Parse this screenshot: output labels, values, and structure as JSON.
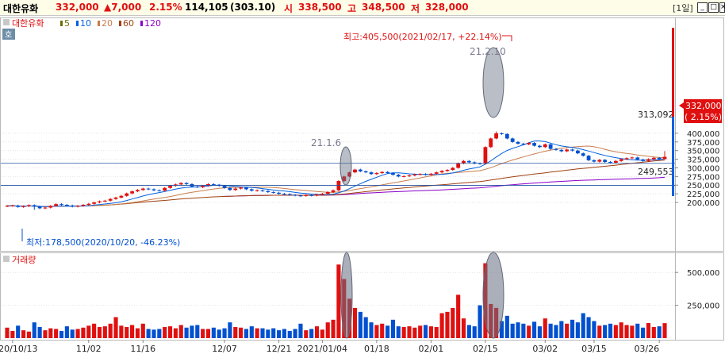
{
  "header": {
    "name": "대한유화",
    "price": "332,000",
    "change": "▲7,000",
    "pct": "2.15%",
    "volume": "114,105",
    "volume_pct": "(303.10)",
    "open_label": "시",
    "open": "338,500",
    "high_label": "고",
    "high": "348,500",
    "low_label": "저",
    "low": "328,000",
    "period": "[1일]",
    "colors": {
      "up": "#e01010",
      "down": "#0050d0"
    }
  },
  "price_panel": {
    "legend_name": "대한유화",
    "ma_labels": [
      "5",
      "10",
      "20",
      "60",
      "120"
    ],
    "ma_colors": [
      "#6d6d00",
      "#0060e0",
      "#c87c4c",
      "#a04010",
      "#8a00c8"
    ],
    "max_annotation": "최고:405,500(2021/02/17, +22.14%)",
    "min_annotation": "최저:178,500(2020/10/20, -46.23%)",
    "event_labels": [
      "21.1.6",
      "21.2.10"
    ],
    "line1_label": "313,092",
    "line2_label": "249,553",
    "current_price": "332,000",
    "current_pct": "( 2.15%)"
  },
  "volume_panel": {
    "title": "거래량",
    "ticks": [
      "500,000",
      "250,000"
    ]
  },
  "x_labels": [
    "2020/10/13",
    "11/02",
    "11/16",
    "12/07",
    "12/21",
    "2021/01/04",
    "01/18",
    "02/01",
    "02/15",
    "03/02",
    "03/15",
    "03/26"
  ],
  "chart_data": {
    "type": "candlestick",
    "title": "대한유화",
    "price_yticks": [
      200000,
      225000,
      250000,
      275000,
      300000,
      325000,
      350000,
      375000,
      400000
    ],
    "price_ylim": [
      175000,
      420000
    ],
    "volume_yticks": [
      250000,
      500000
    ],
    "volume_ylim": [
      0,
      640000
    ],
    "horizontal_lines": [
      313092,
      249553
    ],
    "max": {
      "value": 405500,
      "date": "2021/02/17",
      "pct": "+22.14%"
    },
    "min": {
      "value": 178500,
      "date": "2020/10/20",
      "pct": "-46.23%"
    },
    "last": {
      "close": 332000,
      "open": 338500,
      "high": 348500,
      "low": 328000,
      "volume": 114105
    },
    "series": [
      {
        "name": "대한유화",
        "closes": [
          190000,
          191000,
          187000,
          189000,
          192000,
          188000,
          183000,
          185000,
          190000,
          195000,
          193000,
          191000,
          188000,
          190000,
          193000,
          196000,
          200000,
          203000,
          205000,
          210000,
          214000,
          219000,
          226000,
          232000,
          236000,
          240000,
          238000,
          235000,
          234000,
          242000,
          248000,
          252000,
          256000,
          253000,
          246000,
          244000,
          248000,
          253000,
          251000,
          248000,
          242000,
          236000,
          240000,
          243000,
          238000,
          234000,
          235000,
          233000,
          230000,
          228000,
          225000,
          224000,
          222000,
          220000,
          219000,
          221000,
          220000,
          223000,
          225000,
          230000,
          235000,
          262000,
          275000,
          287000,
          295000,
          290000,
          287000,
          282000,
          285000,
          288000,
          285000,
          280000,
          275000,
          276000,
          278000,
          281000,
          282000,
          280000,
          283000,
          287000,
          291000,
          294000,
          300000,
          313000,
          320000,
          316000,
          313000,
          312000,
          360000,
          385000,
          400000,
          398000,
          385000,
          375000,
          370000,
          368000,
          372000,
          364000,
          360000,
          368000,
          355000,
          352000,
          348000,
          353000,
          350000,
          342000,
          335000,
          322000,
          318000,
          323000,
          317000,
          315000,
          320000,
          325000,
          328000,
          330000,
          324000,
          320000,
          325000,
          329000,
          325000,
          332000
        ]
      },
      {
        "name": "5",
        "values": "moving average"
      },
      {
        "name": "10",
        "values": "moving average"
      },
      {
        "name": "20",
        "values": "moving average"
      },
      {
        "name": "60",
        "values": "moving average"
      },
      {
        "name": "120",
        "values": "moving average"
      }
    ],
    "volumes": [
      80000,
      55000,
      95000,
      60000,
      50000,
      120000,
      85000,
      60000,
      75000,
      70000,
      55000,
      90000,
      65000,
      70000,
      80000,
      95000,
      110000,
      85000,
      90000,
      110000,
      160000,
      95000,
      85000,
      100000,
      75000,
      110000,
      70000,
      65000,
      70000,
      85000,
      90000,
      75000,
      100000,
      80000,
      95000,
      100000,
      70000,
      70000,
      80000,
      65000,
      75000,
      120000,
      85000,
      80000,
      70000,
      90000,
      75000,
      75000,
      65000,
      75000,
      60000,
      70000,
      55000,
      70000,
      110000,
      60000,
      70000,
      90000,
      65000,
      120000,
      140000,
      560000,
      450000,
      300000,
      230000,
      200000,
      160000,
      120000,
      100000,
      110000,
      95000,
      140000,
      90000,
      85000,
      90000,
      80000,
      95000,
      100000,
      90000,
      85000,
      190000,
      200000,
      230000,
      330000,
      150000,
      100000,
      90000,
      250000,
      570000,
      260000,
      230000,
      130000,
      170000,
      110000,
      120000,
      110000,
      95000,
      125000,
      90000,
      150000,
      110000,
      100000,
      130000,
      110000,
      140000,
      120000,
      190000,
      160000,
      130000,
      95000,
      100000,
      110000,
      100000,
      120000,
      100000,
      95000,
      110000,
      80000,
      115000,
      85000,
      90000,
      114105
    ]
  }
}
